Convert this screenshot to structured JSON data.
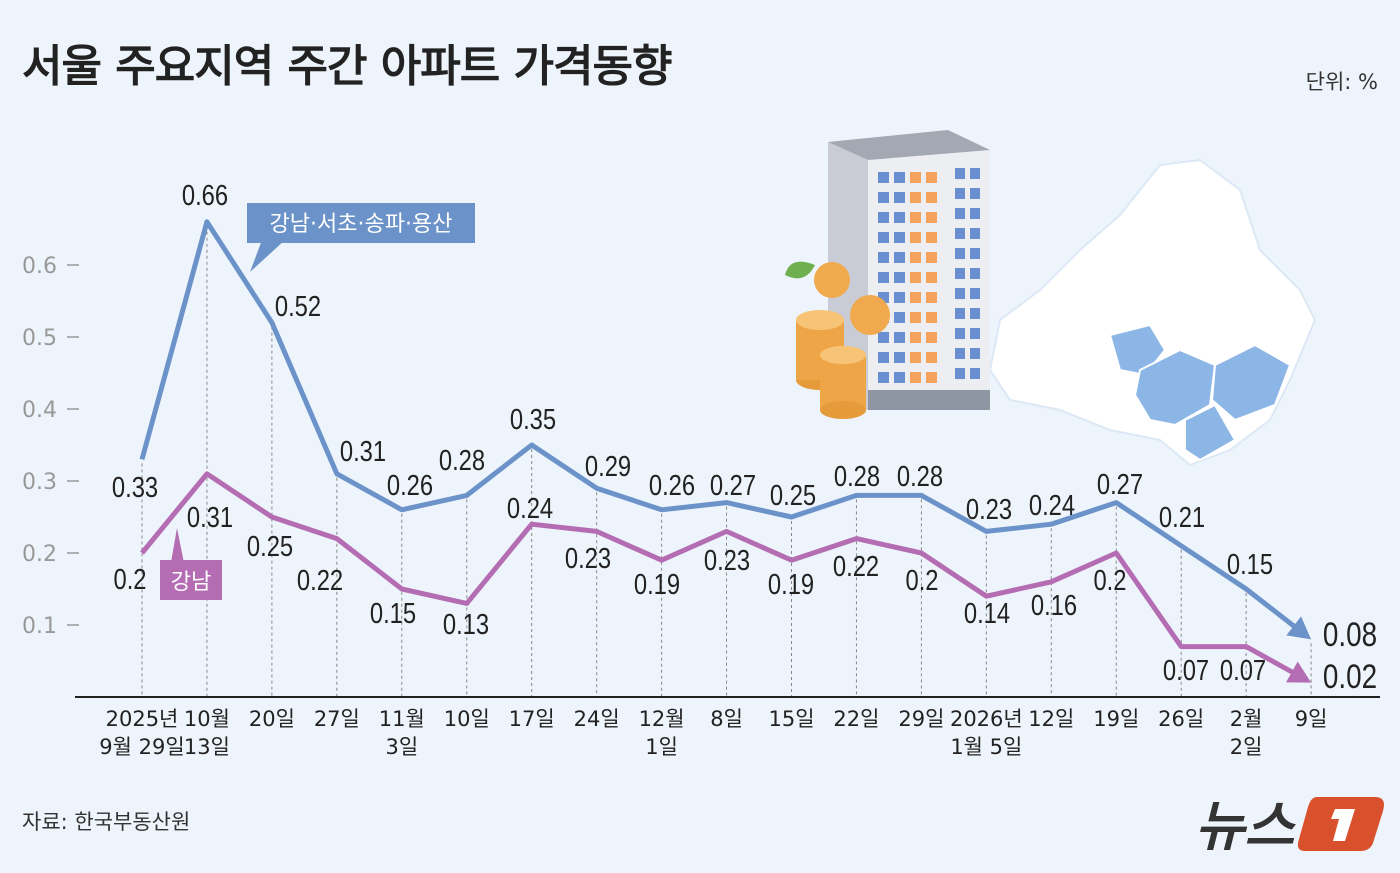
{
  "title": "서울 주요지역 주간 아파트 가격동향",
  "unit": "단위: %",
  "source": "자료: 한국부동산원",
  "logo_text": "뉴스1",
  "chart_data": {
    "type": "line",
    "title": "서울 주요지역 주간 아파트 가격동향",
    "ylim": [
      0,
      0.7
    ],
    "yticks": [
      "0.1",
      "0.2",
      "0.3",
      "0.4",
      "0.5",
      "0.6"
    ],
    "grid": "vertical dotted lines at each category",
    "categories": [
      [
        "2025년",
        "9월 29일"
      ],
      [
        "10월",
        "13일"
      ],
      [
        "20일"
      ],
      [
        "27일"
      ],
      [
        "11월",
        "3일"
      ],
      [
        "10일"
      ],
      [
        "17일"
      ],
      [
        "24일"
      ],
      [
        "12월",
        "1일"
      ],
      [
        "8일"
      ],
      [
        "15일"
      ],
      [
        "22일"
      ],
      [
        "29일"
      ],
      [
        "2026년",
        "1월 5일"
      ],
      [
        "12일"
      ],
      [
        "19일"
      ],
      [
        "26일"
      ],
      [
        "2월",
        "2일"
      ],
      [
        "9일"
      ]
    ],
    "series": [
      {
        "name": "강남·서초·송파·용산",
        "color": "#6b93c9",
        "values": [
          0.33,
          0.66,
          0.52,
          0.31,
          0.26,
          0.28,
          0.35,
          0.29,
          0.26,
          0.27,
          0.25,
          0.28,
          0.28,
          0.23,
          0.24,
          0.27,
          0.21,
          0.15,
          0.08
        ]
      },
      {
        "name": "강남",
        "color": "#b46db3",
        "values": [
          0.2,
          0.31,
          0.25,
          0.22,
          0.15,
          0.13,
          0.24,
          0.23,
          0.19,
          0.23,
          0.19,
          0.22,
          0.2,
          0.14,
          0.16,
          0.2,
          0.07,
          0.07,
          0.02
        ]
      }
    ]
  }
}
